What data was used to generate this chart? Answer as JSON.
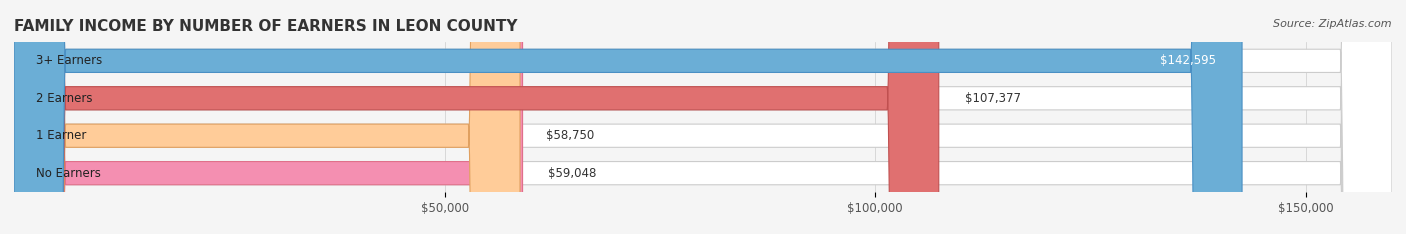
{
  "title": "FAMILY INCOME BY NUMBER OF EARNERS IN LEON COUNTY",
  "source": "Source: ZipAtlas.com",
  "categories": [
    "No Earners",
    "1 Earner",
    "2 Earners",
    "3+ Earners"
  ],
  "values": [
    59048,
    58750,
    107377,
    142595
  ],
  "bar_colors": [
    "#f48fb1",
    "#ffcc99",
    "#e07070",
    "#6baed6"
  ],
  "bar_edge_colors": [
    "#e0708a",
    "#e0a060",
    "#c05050",
    "#4a90c4"
  ],
  "label_colors": [
    "#333333",
    "#333333",
    "#333333",
    "#ffffff"
  ],
  "background_color": "#f5f5f5",
  "bar_bg_color": "#e8e8e8",
  "xlim": [
    0,
    160000
  ],
  "xticks": [
    50000,
    100000,
    150000
  ],
  "xtick_labels": [
    "$50,000",
    "$100,000",
    "$150,000"
  ],
  "title_fontsize": 11,
  "source_fontsize": 8,
  "label_fontsize": 8.5,
  "tick_fontsize": 8.5,
  "bar_height": 0.62,
  "figsize": [
    14.06,
    2.34
  ],
  "dpi": 100
}
